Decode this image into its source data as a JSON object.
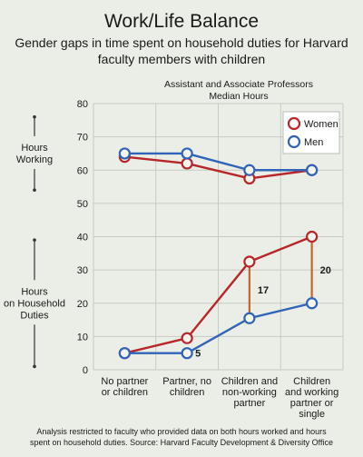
{
  "title": "Work/Life Balance",
  "subtitle_lines": [
    "Gender gaps in time spent on household duties for Harvard",
    "faculty members with children"
  ],
  "group_label_lines": [
    "Assistant and Associate Professors",
    "Median Hours"
  ],
  "side_labels": {
    "hours_working": [
      "Hours",
      "Working"
    ],
    "hours_household": [
      "Hours",
      "on Household",
      "Duties"
    ]
  },
  "footnote_lines": [
    "Analysis restricted to faculty who provided data on both hours worked and hours",
    "spent on household duties. Source: Harvard Faculty Development & Diversity Office"
  ],
  "colors": {
    "women": "#b8262a",
    "men": "#2f64b8",
    "gap_line": "#c8632a",
    "background": "#ebeee6",
    "grid": "#c6cbc2"
  },
  "chart_data": {
    "type": "line",
    "categories": [
      [
        "No partner",
        "or children"
      ],
      [
        "Partner, no",
        "children"
      ],
      [
        "Children and",
        "non-working",
        "partner"
      ],
      [
        "Children",
        "and working",
        "partner or",
        "single"
      ]
    ],
    "ylim": [
      0,
      80
    ],
    "yticks": [
      0,
      10,
      20,
      30,
      40,
      50,
      60,
      70,
      80
    ],
    "grid": true,
    "legend_position": "top-right",
    "series": [
      {
        "name": "Women",
        "hours_working": [
          64,
          62,
          57.5,
          60
        ],
        "hours_household": [
          5,
          9.5,
          32.5,
          40
        ]
      },
      {
        "name": "Men",
        "hours_working": [
          65,
          65,
          60,
          60
        ],
        "hours_household": [
          5,
          5,
          15.5,
          20
        ]
      }
    ],
    "annotations": [
      {
        "text": "5",
        "category_index": 1
      },
      {
        "text": "17",
        "category_index": 2
      },
      {
        "text": "20",
        "category_index": 3
      }
    ]
  }
}
